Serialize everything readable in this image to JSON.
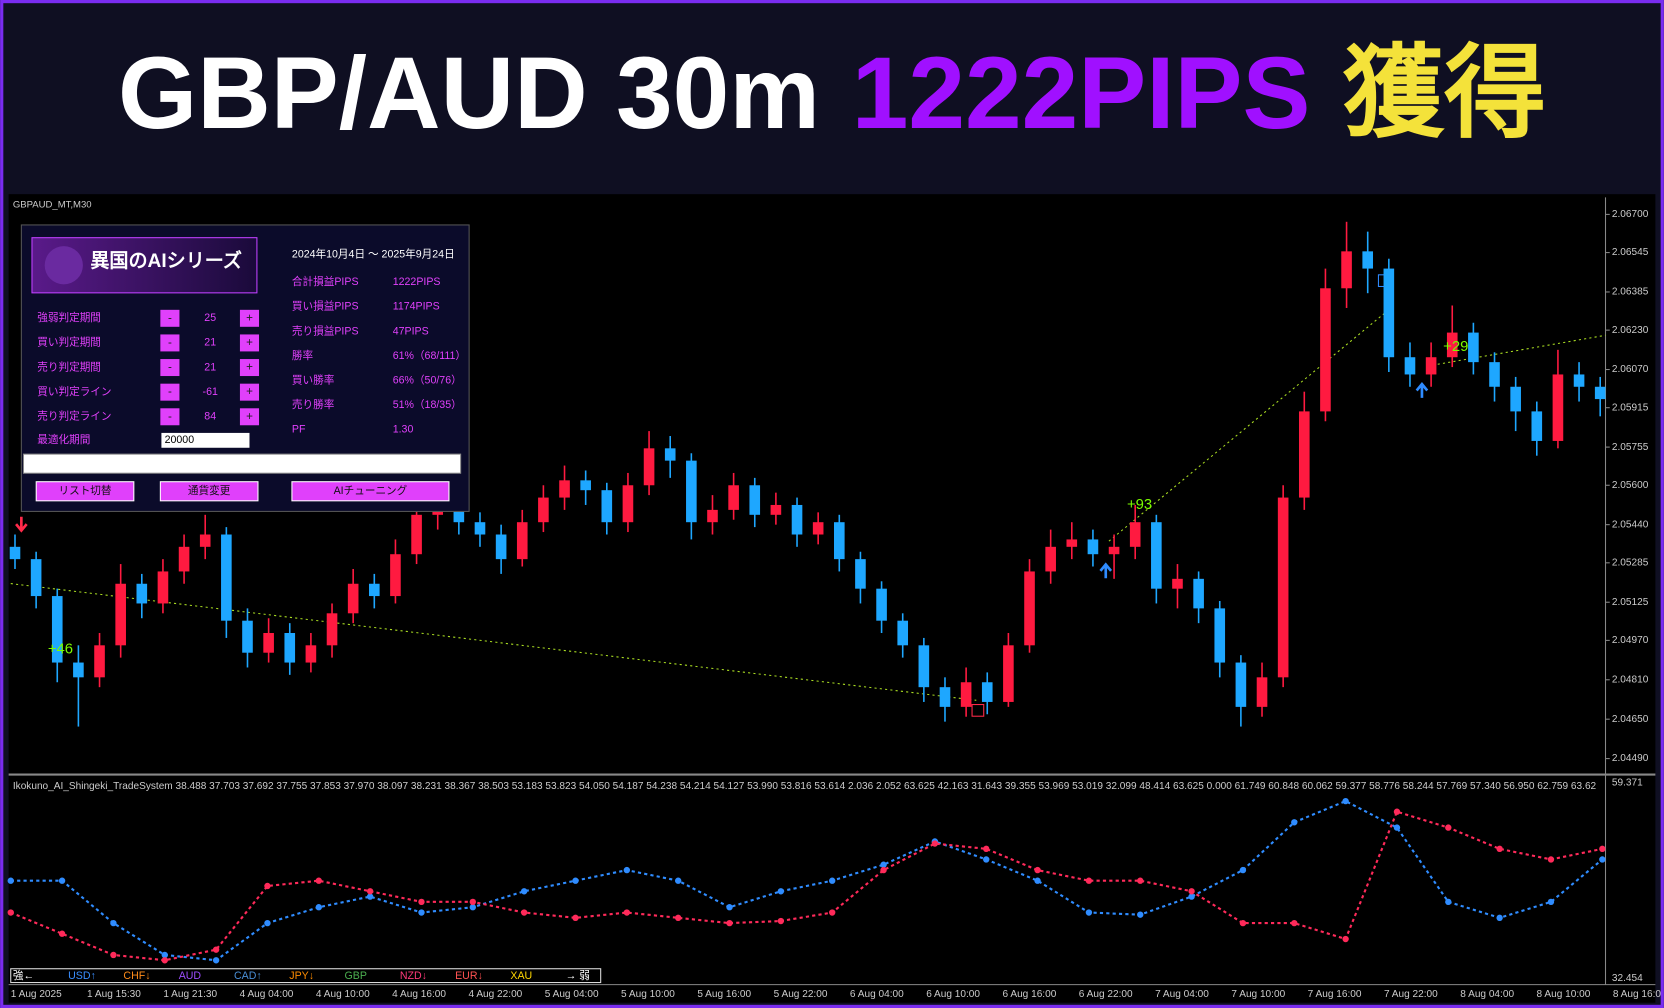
{
  "header": {
    "title_parts": [
      "GBP/AUD 30m",
      "1222PIPS",
      "獲得"
    ]
  },
  "chart_data": {
    "type": "candlestick",
    "symbol_label": "GBPAUD_MT,M30",
    "up_color": "#ff1a40",
    "down_color": "#1ea7ff",
    "ylim": [
      2.04438,
      2.06752
    ],
    "yticks": [
      {
        "value": 2.067,
        "label": "2.06700"
      },
      {
        "value": 2.06545,
        "label": "2.06545"
      },
      {
        "value": 2.06385,
        "label": "2.06385"
      },
      {
        "value": 2.0623,
        "label": "2.06230"
      },
      {
        "value": 2.0607,
        "label": "2.06070"
      },
      {
        "value": 2.05915,
        "label": "2.05915"
      },
      {
        "value": 2.05755,
        "label": "2.05755"
      },
      {
        "value": 2.056,
        "label": "2.05600"
      },
      {
        "value": 2.0544,
        "label": "2.05440"
      },
      {
        "value": 2.05285,
        "label": "2.05285"
      },
      {
        "value": 2.05125,
        "label": "2.05125"
      },
      {
        "value": 2.0497,
        "label": "2.04970"
      },
      {
        "value": 2.0481,
        "label": "2.04810"
      },
      {
        "value": 2.0465,
        "label": "2.04650"
      },
      {
        "value": 2.0449,
        "label": "2.04490"
      }
    ],
    "time_labels": [
      "1 Aug 2025",
      "1 Aug 15:30",
      "1 Aug 21:30",
      "4 Aug 04:00",
      "4 Aug 10:00",
      "4 Aug 16:00",
      "4 Aug 22:00",
      "5 Aug 04:00",
      "5 Aug 10:00",
      "5 Aug 16:00",
      "5 Aug 22:00",
      "6 Aug 04:00",
      "6 Aug 10:00",
      "6 Aug 16:00",
      "6 Aug 22:00",
      "7 Aug 04:00",
      "7 Aug 10:00",
      "7 Aug 16:00",
      "7 Aug 22:00",
      "8 Aug 04:00",
      "8 Aug 10:00",
      "8 Aug 16:0"
    ],
    "annotations": [
      "+46",
      "+93",
      "+29"
    ],
    "candles": [
      [
        2.0535,
        2.054,
        2.0526,
        2.053
      ],
      [
        2.053,
        2.0533,
        2.051,
        2.0515
      ],
      [
        2.0515,
        2.0518,
        2.048,
        2.0488
      ],
      [
        2.0488,
        2.0495,
        2.0462,
        2.0482
      ],
      [
        2.0482,
        2.05,
        2.0478,
        2.0495
      ],
      [
        2.0495,
        2.0528,
        2.049,
        2.052
      ],
      [
        2.052,
        2.0524,
        2.0506,
        2.0512
      ],
      [
        2.0512,
        2.053,
        2.0508,
        2.0525
      ],
      [
        2.0525,
        2.054,
        2.052,
        2.0535
      ],
      [
        2.0535,
        2.0548,
        2.053,
        2.054
      ],
      [
        2.054,
        2.0543,
        2.0498,
        2.0505
      ],
      [
        2.0505,
        2.051,
        2.0486,
        2.0492
      ],
      [
        2.0492,
        2.0506,
        2.0488,
        2.05
      ],
      [
        2.05,
        2.0504,
        2.0483,
        2.0488
      ],
      [
        2.0488,
        2.05,
        2.0484,
        2.0495
      ],
      [
        2.0495,
        2.0512,
        2.049,
        2.0508
      ],
      [
        2.0508,
        2.0526,
        2.0504,
        2.052
      ],
      [
        2.052,
        2.0524,
        2.051,
        2.0515
      ],
      [
        2.0515,
        2.0538,
        2.0512,
        2.0532
      ],
      [
        2.0532,
        2.0553,
        2.0528,
        2.0548
      ],
      [
        2.0548,
        2.0558,
        2.0542,
        2.0552
      ],
      [
        2.0552,
        2.0556,
        2.054,
        2.0545
      ],
      [
        2.0545,
        2.0549,
        2.0535,
        2.054
      ],
      [
        2.054,
        2.0544,
        2.0524,
        2.053
      ],
      [
        2.053,
        2.055,
        2.0527,
        2.0545
      ],
      [
        2.0545,
        2.056,
        2.0541,
        2.0555
      ],
      [
        2.0555,
        2.0568,
        2.055,
        2.0562
      ],
      [
        2.0562,
        2.0566,
        2.0552,
        2.0558
      ],
      [
        2.0558,
        2.0561,
        2.054,
        2.0545
      ],
      [
        2.0545,
        2.0565,
        2.0541,
        2.056
      ],
      [
        2.056,
        2.0582,
        2.0556,
        2.0575
      ],
      [
        2.0575,
        2.058,
        2.0563,
        2.057
      ],
      [
        2.057,
        2.0573,
        2.0538,
        2.0545
      ],
      [
        2.0545,
        2.0556,
        2.054,
        2.055
      ],
      [
        2.055,
        2.0565,
        2.0546,
        2.056
      ],
      [
        2.056,
        2.0563,
        2.0543,
        2.0548
      ],
      [
        2.0548,
        2.0557,
        2.0544,
        2.0552
      ],
      [
        2.0552,
        2.0555,
        2.0535,
        2.054
      ],
      [
        2.054,
        2.0549,
        2.0536,
        2.0545
      ],
      [
        2.0545,
        2.0548,
        2.0525,
        2.053
      ],
      [
        2.053,
        2.0533,
        2.0512,
        2.0518
      ],
      [
        2.0518,
        2.0521,
        2.05,
        2.0505
      ],
      [
        2.0505,
        2.0508,
        2.049,
        2.0495
      ],
      [
        2.0495,
        2.0498,
        2.0472,
        2.0478
      ],
      [
        2.0478,
        2.0482,
        2.0464,
        2.047
      ],
      [
        2.047,
        2.0486,
        2.0466,
        2.048
      ],
      [
        2.048,
        2.0484,
        2.0467,
        2.0472
      ],
      [
        2.0472,
        2.05,
        2.047,
        2.0495
      ],
      [
        2.0495,
        2.053,
        2.0492,
        2.0525
      ],
      [
        2.0525,
        2.0542,
        2.052,
        2.0535
      ],
      [
        2.0535,
        2.0545,
        2.053,
        2.0538
      ],
      [
        2.0538,
        2.0542,
        2.0527,
        2.0532
      ],
      [
        2.0532,
        2.054,
        2.0522,
        2.0535
      ],
      [
        2.0535,
        2.0552,
        2.053,
        2.0545
      ],
      [
        2.0545,
        2.0548,
        2.0512,
        2.0518
      ],
      [
        2.0518,
        2.0528,
        2.051,
        2.0522
      ],
      [
        2.0522,
        2.0525,
        2.0504,
        2.051
      ],
      [
        2.051,
        2.0513,
        2.0482,
        2.0488
      ],
      [
        2.0488,
        2.0491,
        2.0462,
        2.047
      ],
      [
        2.047,
        2.0488,
        2.0466,
        2.0482
      ],
      [
        2.0482,
        2.056,
        2.0478,
        2.0555
      ],
      [
        2.0555,
        2.0598,
        2.055,
        2.059
      ],
      [
        2.059,
        2.0648,
        2.0586,
        2.064
      ],
      [
        2.064,
        2.0667,
        2.0632,
        2.0655
      ],
      [
        2.0655,
        2.0663,
        2.0638,
        2.0648
      ],
      [
        2.0648,
        2.0652,
        2.0606,
        2.0612
      ],
      [
        2.0612,
        2.0618,
        2.06,
        2.0605
      ],
      [
        2.0605,
        2.0618,
        2.06,
        2.0612
      ],
      [
        2.0612,
        2.0633,
        2.0608,
        2.0622
      ],
      [
        2.0622,
        2.0626,
        2.0605,
        2.061
      ],
      [
        2.061,
        2.0614,
        2.0594,
        2.06
      ],
      [
        2.06,
        2.0604,
        2.0582,
        2.059
      ],
      [
        2.059,
        2.0594,
        2.0572,
        2.0578
      ],
      [
        2.0578,
        2.0615,
        2.0575,
        2.0605
      ],
      [
        2.0605,
        2.061,
        2.0594,
        2.06
      ],
      [
        2.06,
        2.0604,
        2.0588,
        2.0595
      ]
    ]
  },
  "indicator": {
    "type": "line",
    "title": "Ikokuno_AI_Shingeki_TradeSystem 38.488 37.703 37.692 37.755 37.853 37.970 38.097 38.231 38.367 38.503 53.183 53.823 54.050 54.187 54.238 54.214 54.127 53.990 53.816 53.614 2.036 2.052 63.625 42.163 31.643 39.355 53.969 53.019 32.099 48.414 63.625 0.000 61.749 60.848 60.062 59.377 58.776 58.244 57.769 57.340 56.950 62.759 63.62",
    "ylim": [
      32.454,
      59.371
    ],
    "yticks": [
      59.371,
      32.454
    ],
    "series": [
      {
        "color": "#2f8cff",
        "values": [
          45.91,
          45.91,
          40.06,
          35.67,
          34.94,
          40.06,
          42.25,
          43.72,
          41.52,
          42.25,
          44.45,
          45.91,
          47.37,
          45.91,
          42.25,
          44.45,
          45.91,
          48.11,
          51.32,
          48.84,
          45.91,
          41.52,
          41.23,
          43.72,
          47.37,
          53.96,
          56.88,
          53.23,
          42.99,
          40.79,
          42.99,
          48.84
        ]
      },
      {
        "color": "#ff2a5a",
        "values": [
          41.52,
          38.6,
          35.67,
          34.94,
          36.4,
          45.18,
          45.91,
          44.45,
          42.99,
          42.99,
          41.52,
          40.79,
          41.52,
          40.79,
          40.06,
          40.35,
          41.52,
          47.37,
          51.03,
          50.3,
          47.37,
          45.91,
          45.91,
          44.45,
          40.06,
          40.06,
          37.87,
          55.42,
          53.23,
          50.3,
          48.84,
          50.3
        ]
      }
    ],
    "currency_legend": [
      {
        "label": "強←",
        "color": "#ffffff"
      },
      {
        "label": "USD↑",
        "color": "#3a8fff"
      },
      {
        "label": "CHF↓",
        "color": "#ff8c1a"
      },
      {
        "label": "AUD",
        "color": "#9d4dff"
      },
      {
        "label": "CAD↑",
        "color": "#4a8fd6"
      },
      {
        "label": "JPY↓",
        "color": "#ff8c00"
      },
      {
        "label": "GBP",
        "color": "#4caf50"
      },
      {
        "label": "NZD↓",
        "color": "#ff3a7a"
      },
      {
        "label": "EUR↓",
        "color": "#ff5252"
      },
      {
        "label": "XAU",
        "color": "#ffd700"
      },
      {
        "label": "→ 弱",
        "color": "#ffffff"
      }
    ]
  },
  "panel": {
    "logo": "異国のAIシリーズ",
    "period": "2024年10月4日 ～ 2025年9月24日",
    "minus_label": "-",
    "plus_label": "+",
    "params": [
      {
        "label": "強弱判定期間",
        "value": 25
      },
      {
        "label": "買い判定期間",
        "value": 21
      },
      {
        "label": "売り判定期間",
        "value": 21
      },
      {
        "label": "買い判定ライン",
        "value": -61
      },
      {
        "label": "売り判定ライン",
        "value": 84
      }
    ],
    "optimize": {
      "label": "最適化期間",
      "value": "20000"
    },
    "stats": [
      {
        "label": "合計損益PIPS",
        "value": "1222PIPS"
      },
      {
        "label": "買い損益PIPS",
        "value": "1174PIPS"
      },
      {
        "label": "売り損益PIPS",
        "value": "47PIPS"
      },
      {
        "label": "勝率",
        "value": "61%（68/111）"
      },
      {
        "label": "買い勝率",
        "value": "66%（50/76）"
      },
      {
        "label": "売り勝率",
        "value": "51%（18/35）"
      },
      {
        "label": "PF",
        "value": "1.30"
      }
    ],
    "buttons": [
      "リスト切替",
      "通貨変更",
      "AIチューニング"
    ]
  }
}
